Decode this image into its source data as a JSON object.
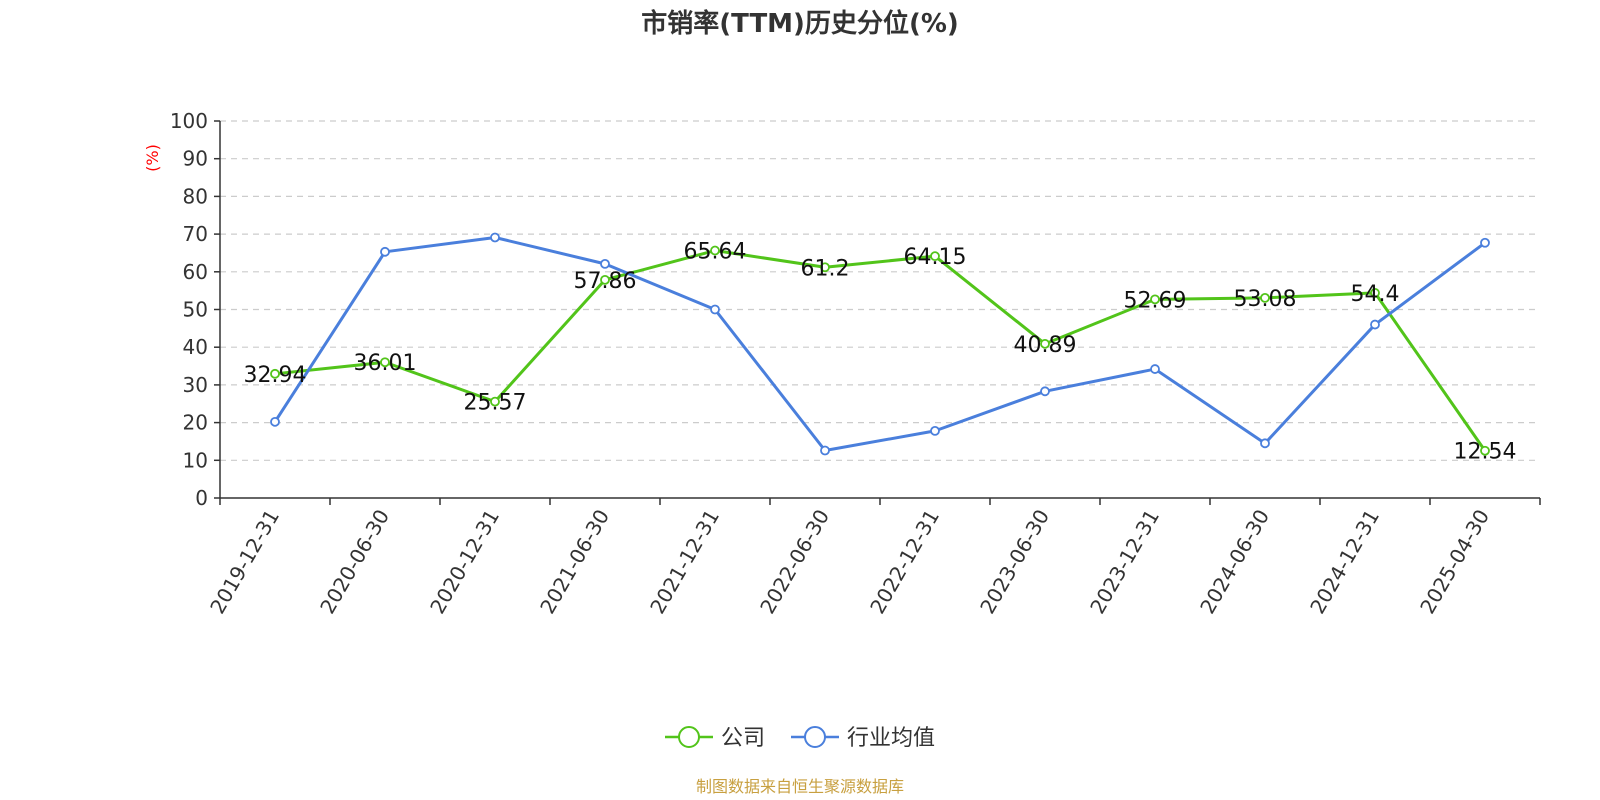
{
  "chart_data": {
    "type": "line",
    "title": "市销率(TTM)历史分位(%)",
    "xlabel": "",
    "ylabel": "(%)",
    "ylim": [
      0,
      100
    ],
    "yticks": [
      0,
      10,
      20,
      30,
      40,
      50,
      60,
      70,
      80,
      90,
      100
    ],
    "grid": true,
    "legend_position": "bottom-center",
    "categories": [
      "2019-12-31",
      "2020-06-30",
      "2020-12-31",
      "2021-06-30",
      "2021-12-31",
      "2022-06-30",
      "2022-12-31",
      "2023-06-30",
      "2023-12-31",
      "2024-06-30",
      "2024-12-31",
      "2025-04-30"
    ],
    "series": [
      {
        "name": "公司",
        "color": "#52c41a",
        "values": [
          32.94,
          36.01,
          25.57,
          57.86,
          65.64,
          61.2,
          64.15,
          40.89,
          52.69,
          53.08,
          54.4,
          12.54
        ],
        "labels": [
          "32.94",
          "36.01",
          "25.57",
          "57.86",
          "65.64",
          "61.2",
          "64.15",
          "40.89",
          "52.69",
          "53.08",
          "54.4",
          "12.54"
        ]
      },
      {
        "name": "行业均值",
        "color": "#4a7fdc",
        "values": [
          20.2,
          65.3,
          69.1,
          62.1,
          50.0,
          12.6,
          17.8,
          28.3,
          34.2,
          14.5,
          46.0,
          67.7
        ]
      }
    ],
    "source_note": "制图数据来自恒生聚源数据库",
    "colors": {
      "axis": "#333333",
      "grid": "#cccccc",
      "ylabel": "#ff0000",
      "source": "#c8a040"
    }
  }
}
